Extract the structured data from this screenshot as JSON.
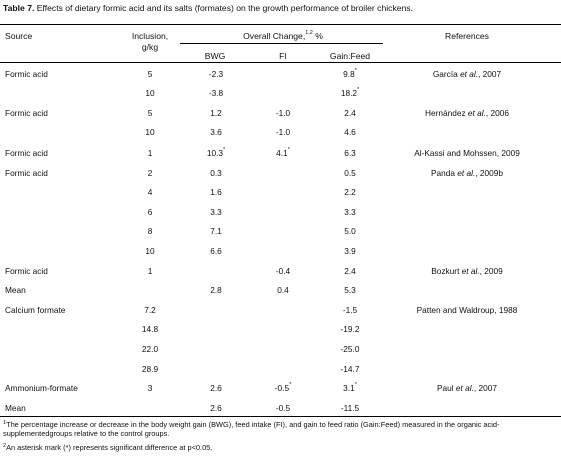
{
  "caption": {
    "label": "Table 7.",
    "text": " Effects of dietary formic acid and its salts (formates) on the growth performance of broiler chickens."
  },
  "headers": {
    "source": "Source",
    "inclusion_l1": "Inclusion,",
    "inclusion_l2": "g/kg",
    "overall": "Overall Change,",
    "overall_sup": "1,2",
    "overall_unit": " %",
    "bwg": "BWG",
    "fi": "FI",
    "gainfeed": "Gain:Feed",
    "references": "References"
  },
  "rows": [
    {
      "source": "Formic acid",
      "inclusion": "5",
      "bwg": "-2.3",
      "fi": "",
      "gf": "9.8*",
      "ref": "García et al., 2007"
    },
    {
      "source": "",
      "inclusion": "10",
      "bwg": "-3.8",
      "fi": "",
      "gf": "18.2*",
      "ref": ""
    },
    {
      "source": "Formic acid",
      "inclusion": "5",
      "bwg": "1.2",
      "fi": "-1.0",
      "gf": "2.4",
      "ref": "Hernández et al., 2006"
    },
    {
      "source": "",
      "inclusion": "10",
      "bwg": "3.6",
      "fi": "-1.0",
      "gf": "4.6",
      "ref": ""
    },
    {
      "source": "Formic acid",
      "inclusion": "1",
      "bwg": "10.3*",
      "fi": "4.1*",
      "gf": "6.3",
      "ref": "Al-Kassi and Mohssen, 2009"
    },
    {
      "source": "Formic acid",
      "inclusion": "2",
      "bwg": "0.3",
      "fi": "",
      "gf": "0.5",
      "ref": "Panda et al., 2009b"
    },
    {
      "source": "",
      "inclusion": "4",
      "bwg": "1.6",
      "fi": "",
      "gf": "2.2",
      "ref": ""
    },
    {
      "source": "",
      "inclusion": "6",
      "bwg": "3.3",
      "fi": "",
      "gf": "3.3",
      "ref": ""
    },
    {
      "source": "",
      "inclusion": "8",
      "bwg": "7.1",
      "fi": "",
      "gf": "5.0",
      "ref": ""
    },
    {
      "source": "",
      "inclusion": "10",
      "bwg": "6.6",
      "fi": "",
      "gf": "3.9",
      "ref": ""
    },
    {
      "source": "Formic acid",
      "inclusion": "1",
      "bwg": "",
      "fi": "-0.4",
      "gf": "2.4",
      "ref": "Bozkurt et al., 2009"
    },
    {
      "source": "Mean",
      "inclusion": "",
      "bwg": "2.8",
      "fi": "0.4",
      "gf": "5.3",
      "ref": ""
    },
    {
      "source": "Calcium formate",
      "inclusion": "7.2",
      "bwg": "",
      "fi": "",
      "gf": "-1.5",
      "ref": "Patten and Waldroup, 1988"
    },
    {
      "source": "",
      "inclusion": "14.8",
      "bwg": "",
      "fi": "",
      "gf": "-19.2",
      "ref": ""
    },
    {
      "source": "",
      "inclusion": "22.0",
      "bwg": "",
      "fi": "",
      "gf": "-25.0",
      "ref": ""
    },
    {
      "source": "",
      "inclusion": "28.9",
      "bwg": "",
      "fi": "",
      "gf": "-14.7",
      "ref": ""
    },
    {
      "source": "Ammonium-formate",
      "inclusion": "3",
      "bwg": "2.6",
      "fi": "-0.5*",
      "gf": "3.1*",
      "ref": "Paul et al., 2007"
    },
    {
      "source": "Mean",
      "inclusion": "",
      "bwg": "2.6",
      "fi": "-0.5",
      "gf": "-11.5",
      "ref": ""
    }
  ],
  "footnotes": {
    "fn1_mark": "1",
    "fn1_line1": "The percentage increase or decrease in the body weight gain (BWG), feed intake (FI), and gain to feed ratio (Gain:Feed) measured in the organic acid-",
    "fn1_line2": "supplementedgroups relative to the control groups.",
    "fn2_mark": "2",
    "fn2_text": "An asterisk mark (*) represents significant difference at p<0.05."
  }
}
